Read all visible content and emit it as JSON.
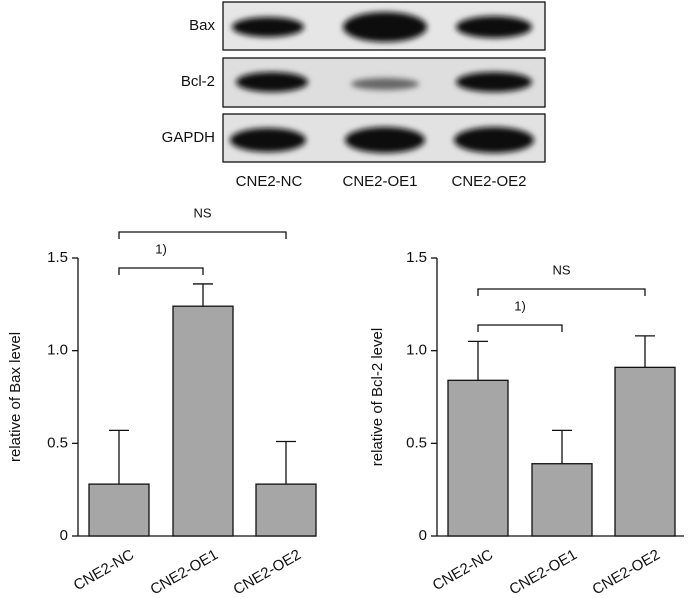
{
  "blot": {
    "rows": [
      "Bax",
      "Bcl-2",
      "GAPDH"
    ],
    "lanes": [
      "CNE2-NC",
      "CNE2-OE1",
      "CNE2-OE2"
    ]
  },
  "chart_data": [
    {
      "type": "bar",
      "y_label": "relative of Bax level",
      "categories": [
        "CNE2-NC",
        "CNE2-OE1",
        "CNE2-OE2"
      ],
      "values": [
        0.28,
        1.24,
        0.28
      ],
      "errors": [
        0.29,
        0.12,
        0.23
      ],
      "color": "#a6a6a6",
      "ylim": [
        0,
        1.5
      ],
      "yticks": [
        0,
        0.5,
        {
          "value": 1,
          "label": "1.0"
        },
        1.5
      ],
      "annotations": [
        "1)",
        "NS"
      ]
    },
    {
      "type": "bar",
      "y_label": "relative of Bcl-2 level",
      "categories": [
        "CNE2-NC",
        "CNE2-OE1",
        "CNE2-OE2"
      ],
      "values": [
        0.84,
        0.39,
        0.91
      ],
      "errors": [
        0.21,
        0.18,
        0.17
      ],
      "color": "#a6a6a6",
      "ylim": [
        0,
        1.5
      ],
      "yticks": [
        0,
        0.5,
        {
          "value": 1,
          "label": "1.0"
        },
        1.5
      ],
      "annotations": [
        "1)",
        "NS"
      ]
    }
  ]
}
